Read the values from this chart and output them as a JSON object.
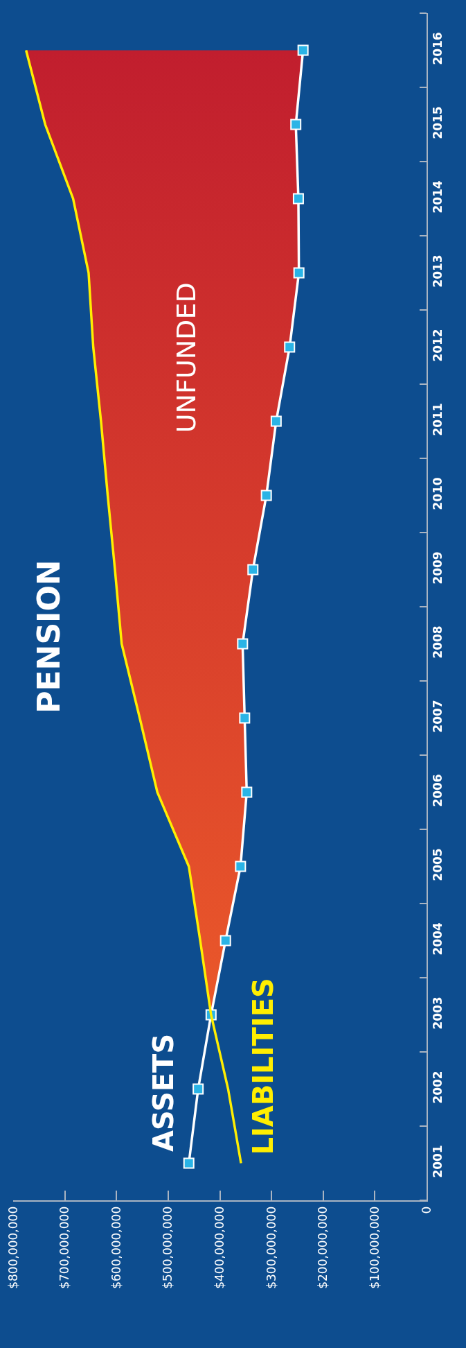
{
  "chart_data": {
    "type": "line",
    "title": "PENSION",
    "orientation": "horizontal",
    "categories": [
      "2016",
      "2015",
      "2014",
      "2013",
      "2012",
      "2011",
      "2010",
      "2009",
      "2008",
      "2007",
      "2006",
      "2005",
      "2004",
      "2003",
      "2002",
      "2001"
    ],
    "series": [
      {
        "name": "ASSETS",
        "color": "#ffffff",
        "marker": "square",
        "values": [
          239000000,
          253000000,
          248000000,
          247000000,
          265000000,
          291000000,
          310000000,
          336000000,
          356000000,
          352000000,
          348000000,
          360000000,
          389000000,
          417000000,
          442000000,
          460000000
        ],
        "lower": [
          239000000,
          253000000,
          248000000,
          247000000,
          265000000,
          291000000,
          310000000,
          336000000,
          356000000,
          352000000,
          348000000,
          360000000,
          389000000,
          417000000,
          null,
          null
        ],
        "upper": [
          775000000,
          738000000,
          684000000,
          654000000,
          645000000,
          630000000,
          617000000,
          603000000,
          590000000,
          555000000,
          521000000,
          460000000,
          438000000,
          417000000,
          null,
          null
        ]
      },
      {
        "name": "LIABILITIES",
        "color": "#ffee00",
        "values": [
          775000000,
          738000000,
          684000000,
          654000000,
          645000000,
          630000000,
          617000000,
          603000000,
          590000000,
          555000000,
          521000000,
          460000000,
          438000000,
          417000000,
          384000000,
          359000000
        ]
      }
    ],
    "annotations": [
      "UNFUNDED"
    ],
    "xlim": [
      800000000,
      0
    ],
    "xticks": [
      {
        "value": 800000000,
        "label": "$800,000,000"
      },
      {
        "value": 700000000,
        "label": "$700,000,000"
      },
      {
        "value": 600000000,
        "label": "$600,000,000"
      },
      {
        "value": 500000000,
        "label": "$500,000,000"
      },
      {
        "value": 400000000,
        "label": "$400,000,000"
      },
      {
        "value": 300000000,
        "label": "$300,000,000"
      },
      {
        "value": 200000000,
        "label": "$200,000,000"
      },
      {
        "value": 100000000,
        "label": "$100,000,000"
      },
      0
    ]
  }
}
